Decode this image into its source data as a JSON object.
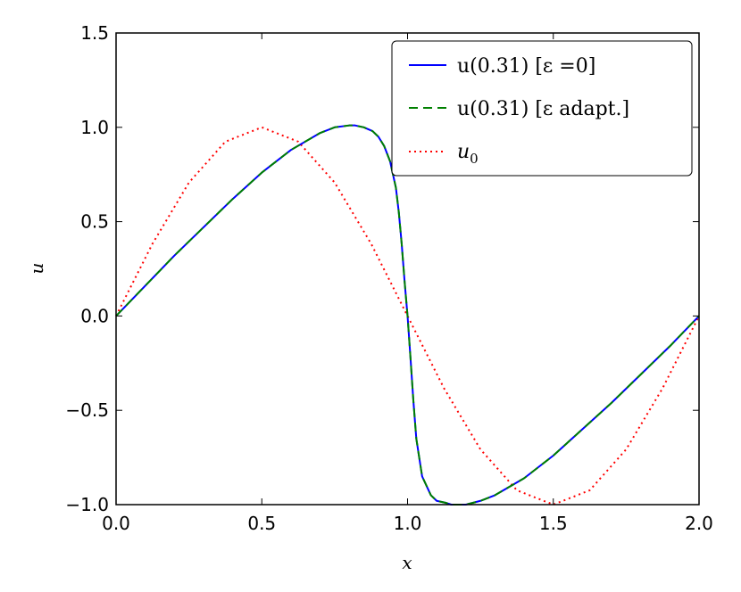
{
  "chart_data": {
    "type": "line",
    "xlabel": "x",
    "ylabel": "u",
    "xlim": [
      0.0,
      2.0
    ],
    "ylim": [
      -1.0,
      1.5
    ],
    "xticks": [
      "0.0",
      "0.5",
      "1.0",
      "1.5",
      "2.0"
    ],
    "yticks": [
      "−1.0",
      "−0.5",
      "0.0",
      "0.5",
      "1.0",
      "1.5"
    ],
    "xtick_values": [
      0.0,
      0.5,
      1.0,
      1.5,
      2.0
    ],
    "ytick_values": [
      -1.0,
      -0.5,
      0.0,
      0.5,
      1.0,
      1.5
    ],
    "grid": false,
    "legend_position": "upper right",
    "series": [
      {
        "name": "u(0.31) [ε =0]",
        "legend_main": "u(0.31) [ε =0]",
        "color": "#0000ff",
        "style": "solid",
        "x": [
          0.0,
          0.1,
          0.2,
          0.3,
          0.4,
          0.5,
          0.6,
          0.7,
          0.75,
          0.8,
          0.82,
          0.85,
          0.88,
          0.9,
          0.92,
          0.94,
          0.96,
          0.97,
          0.98,
          0.99,
          1.0,
          1.01,
          1.02,
          1.03,
          1.05,
          1.08,
          1.1,
          1.13,
          1.15,
          1.18,
          1.2,
          1.25,
          1.3,
          1.4,
          1.5,
          1.6,
          1.7,
          1.8,
          1.9,
          2.0
        ],
        "values": [
          0.0,
          0.16,
          0.32,
          0.47,
          0.62,
          0.76,
          0.88,
          0.97,
          1.0,
          1.01,
          1.01,
          1.0,
          0.98,
          0.95,
          0.9,
          0.82,
          0.68,
          0.55,
          0.38,
          0.18,
          0.0,
          -0.22,
          -0.45,
          -0.65,
          -0.85,
          -0.95,
          -0.98,
          -0.99,
          -1.0,
          -1.0,
          -1.0,
          -0.98,
          -0.95,
          -0.86,
          -0.74,
          -0.6,
          -0.46,
          -0.31,
          -0.16,
          0.0
        ]
      },
      {
        "name": "u(0.31) [ε adapt.]",
        "legend_main": "u(0.31) [ε adapt.]",
        "color": "#008000",
        "style": "dashed",
        "x": [
          0.0,
          0.1,
          0.2,
          0.3,
          0.4,
          0.5,
          0.6,
          0.7,
          0.75,
          0.8,
          0.82,
          0.85,
          0.88,
          0.9,
          0.92,
          0.94,
          0.96,
          0.97,
          0.98,
          0.99,
          1.0,
          1.01,
          1.02,
          1.03,
          1.05,
          1.08,
          1.1,
          1.13,
          1.15,
          1.18,
          1.2,
          1.25,
          1.3,
          1.4,
          1.5,
          1.6,
          1.7,
          1.8,
          1.9,
          2.0
        ],
        "values": [
          0.0,
          0.16,
          0.32,
          0.47,
          0.62,
          0.76,
          0.88,
          0.97,
          1.0,
          1.01,
          1.01,
          1.0,
          0.98,
          0.95,
          0.9,
          0.82,
          0.68,
          0.55,
          0.38,
          0.18,
          0.0,
          -0.22,
          -0.45,
          -0.65,
          -0.85,
          -0.95,
          -0.98,
          -0.99,
          -1.0,
          -1.0,
          -1.0,
          -0.98,
          -0.95,
          -0.86,
          -0.74,
          -0.6,
          -0.46,
          -0.31,
          -0.16,
          0.0
        ]
      },
      {
        "name": "u0",
        "legend_main": "u",
        "legend_sub": "0",
        "color": "#ff0000",
        "style": "dotted",
        "function": "sin(pi*x)",
        "x": [
          0.0,
          0.125,
          0.25,
          0.375,
          0.5,
          0.625,
          0.75,
          0.875,
          1.0,
          1.125,
          1.25,
          1.375,
          1.5,
          1.625,
          1.75,
          1.875,
          2.0
        ],
        "values": [
          0.0,
          0.383,
          0.707,
          0.924,
          1.0,
          0.924,
          0.707,
          0.383,
          0.0,
          -0.383,
          -0.707,
          -0.924,
          -1.0,
          -0.924,
          -0.707,
          -0.383,
          0.0
        ]
      }
    ]
  }
}
